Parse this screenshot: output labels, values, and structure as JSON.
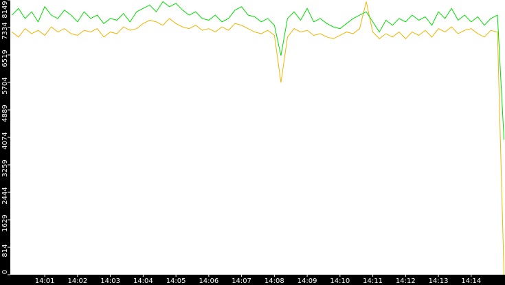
{
  "chart_data": {
    "type": "line",
    "x": [
      0,
      0.2,
      0.4,
      0.6,
      0.8,
      1,
      1.2,
      1.4,
      1.6,
      1.8,
      2,
      2.2,
      2.4,
      2.6,
      2.8,
      3,
      3.2,
      3.4,
      3.6,
      3.8,
      4,
      4.2,
      4.4,
      4.6,
      4.8,
      5,
      5.2,
      5.4,
      5.6,
      5.8,
      6,
      6.2,
      6.4,
      6.6,
      6.8,
      7,
      7.2,
      7.4,
      7.6,
      7.8,
      8,
      8.2,
      8.4,
      8.6,
      8.8,
      9,
      9.2,
      9.4,
      9.6,
      9.8,
      10,
      10.2,
      10.4,
      10.6,
      10.8,
      11,
      11.2,
      11.4,
      11.6,
      11.8,
      12,
      12.2,
      12.4,
      12.6,
      12.8,
      13,
      13.2,
      13.4,
      13.6,
      13.8,
      14,
      14.2,
      14.4,
      14.6,
      14.8,
      15
    ],
    "series": [
      {
        "color": "#f0b400",
        "values": [
          7200,
          7050,
          7300,
          7150,
          7250,
          7100,
          7350,
          7200,
          7300,
          7150,
          7100,
          7250,
          7200,
          7300,
          7050,
          7200,
          7150,
          7350,
          7250,
          7300,
          7450,
          7550,
          7500,
          7400,
          7600,
          7450,
          7350,
          7300,
          7400,
          7250,
          7300,
          7200,
          7350,
          7250,
          7450,
          7400,
          7300,
          7200,
          7150,
          7250,
          7100,
          5700,
          7050,
          7300,
          7200,
          7250,
          7100,
          7150,
          7050,
          7000,
          7100,
          7200,
          7150,
          7300,
          8100,
          7200,
          7000,
          7150,
          7050,
          7200,
          7000,
          7200,
          7100,
          7250,
          7050,
          7300,
          7200,
          7350,
          7150,
          7250,
          7300,
          7150,
          7050,
          7250,
          7200,
          0
        ]
      },
      {
        "color": "#00dd00",
        "values": [
          7700,
          7900,
          7600,
          7800,
          7500,
          7950,
          7700,
          7600,
          7850,
          7700,
          7500,
          7800,
          7600,
          7700,
          7450,
          7600,
          7550,
          7750,
          7500,
          7800,
          7900,
          8000,
          7800,
          8100,
          7950,
          8050,
          7850,
          7700,
          7800,
          7600,
          7550,
          7700,
          7500,
          7600,
          7850,
          7950,
          7700,
          7650,
          7500,
          7600,
          7400,
          6500,
          7600,
          7800,
          7550,
          7900,
          7500,
          7600,
          7450,
          7350,
          7300,
          7450,
          7600,
          7700,
          7800,
          7500,
          7200,
          7550,
          7400,
          7600,
          7500,
          7700,
          7550,
          7650,
          7400,
          7800,
          7600,
          7900,
          7550,
          7700,
          7500,
          7650,
          7400,
          7600,
          7700,
          4000
        ]
      }
    ],
    "ylim": [
      0,
      8149
    ],
    "yticks": [
      0,
      814,
      1629,
      2444,
      3259,
      4074,
      4889,
      5704,
      6519,
      7334,
      8149
    ],
    "xlim": [
      -0.05,
      15.03
    ],
    "xticks": [
      {
        "value": 1,
        "label": "14:01"
      },
      {
        "value": 2,
        "label": "14:02"
      },
      {
        "value": 3,
        "label": "14:03"
      },
      {
        "value": 4,
        "label": "14:04"
      },
      {
        "value": 5,
        "label": "14:05"
      },
      {
        "value": 6,
        "label": "14:06"
      },
      {
        "value": 7,
        "label": "14:07"
      },
      {
        "value": 8,
        "label": "14:08"
      },
      {
        "value": 9,
        "label": "14:09"
      },
      {
        "value": 10,
        "label": "14:10"
      },
      {
        "value": 11,
        "label": "14:11"
      },
      {
        "value": 12,
        "label": "14:12"
      },
      {
        "value": 13,
        "label": "14:13"
      },
      {
        "value": 14,
        "label": "14:14"
      }
    ]
  }
}
